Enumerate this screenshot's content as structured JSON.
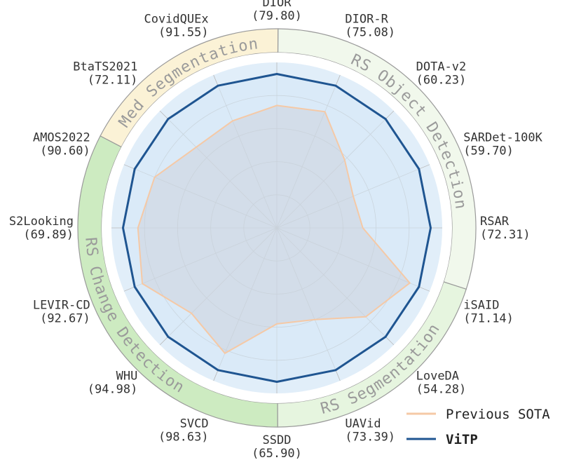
{
  "chart_data": {
    "type": "radar",
    "axes": [
      {
        "name": "DIOR",
        "value_label": "(79.80)"
      },
      {
        "name": "DIOR-R",
        "value_label": "(75.08)"
      },
      {
        "name": "DOTA-v2",
        "value_label": "(60.23)"
      },
      {
        "name": "SARDet-100K",
        "value_label": "(59.70)"
      },
      {
        "name": "RSAR",
        "value_label": "(72.31)"
      },
      {
        "name": "iSAID",
        "value_label": "(71.14)"
      },
      {
        "name": "LoveDA",
        "value_label": "(54.28)"
      },
      {
        "name": "UAVid",
        "value_label": "(73.39)"
      },
      {
        "name": "SSDD",
        "value_label": "(65.90)"
      },
      {
        "name": "SVCD",
        "value_label": "(98.63)"
      },
      {
        "name": "WHU",
        "value_label": "(94.98)"
      },
      {
        "name": "LEVIR-CD",
        "value_label": "(92.67)"
      },
      {
        "name": "S2Looking",
        "value_label": "(69.89)"
      },
      {
        "name": "AMOS2022",
        "value_label": "(90.60)"
      },
      {
        "name": "BtaTS2021",
        "value_label": "(72.11)"
      },
      {
        "name": "CovidQUEx",
        "value_label": "(91.55)"
      }
    ],
    "r_range": [
      0,
      1
    ],
    "grid": true,
    "series": [
      {
        "name": "Previous SOTA",
        "color": "#f5c9a6",
        "values": [
          0.74,
          0.76,
          0.58,
          0.5,
          0.52,
          0.87,
          0.76,
          0.6,
          0.58,
          0.82,
          0.73,
          0.88,
          0.84,
          0.8,
          0.69,
          0.7
        ]
      },
      {
        "name": "ViTP",
        "color": "#1f5591",
        "values": [
          0.93,
          0.93,
          0.93,
          0.93,
          0.93,
          0.93,
          0.93,
          0.93,
          0.93,
          0.93,
          0.93,
          0.93,
          0.93,
          0.93,
          0.93,
          0.93
        ]
      }
    ],
    "groups": [
      {
        "label": "RS Object Detection",
        "color": "#f1f8ec"
      },
      {
        "label": "RS Segmentation",
        "color": "#e6f5df"
      },
      {
        "label": "RS Change Detection",
        "color": "#cdebc1"
      },
      {
        "label": "Med Segmentation",
        "color": "#fbf2d6"
      }
    ],
    "legend_position": "bottom-right"
  }
}
